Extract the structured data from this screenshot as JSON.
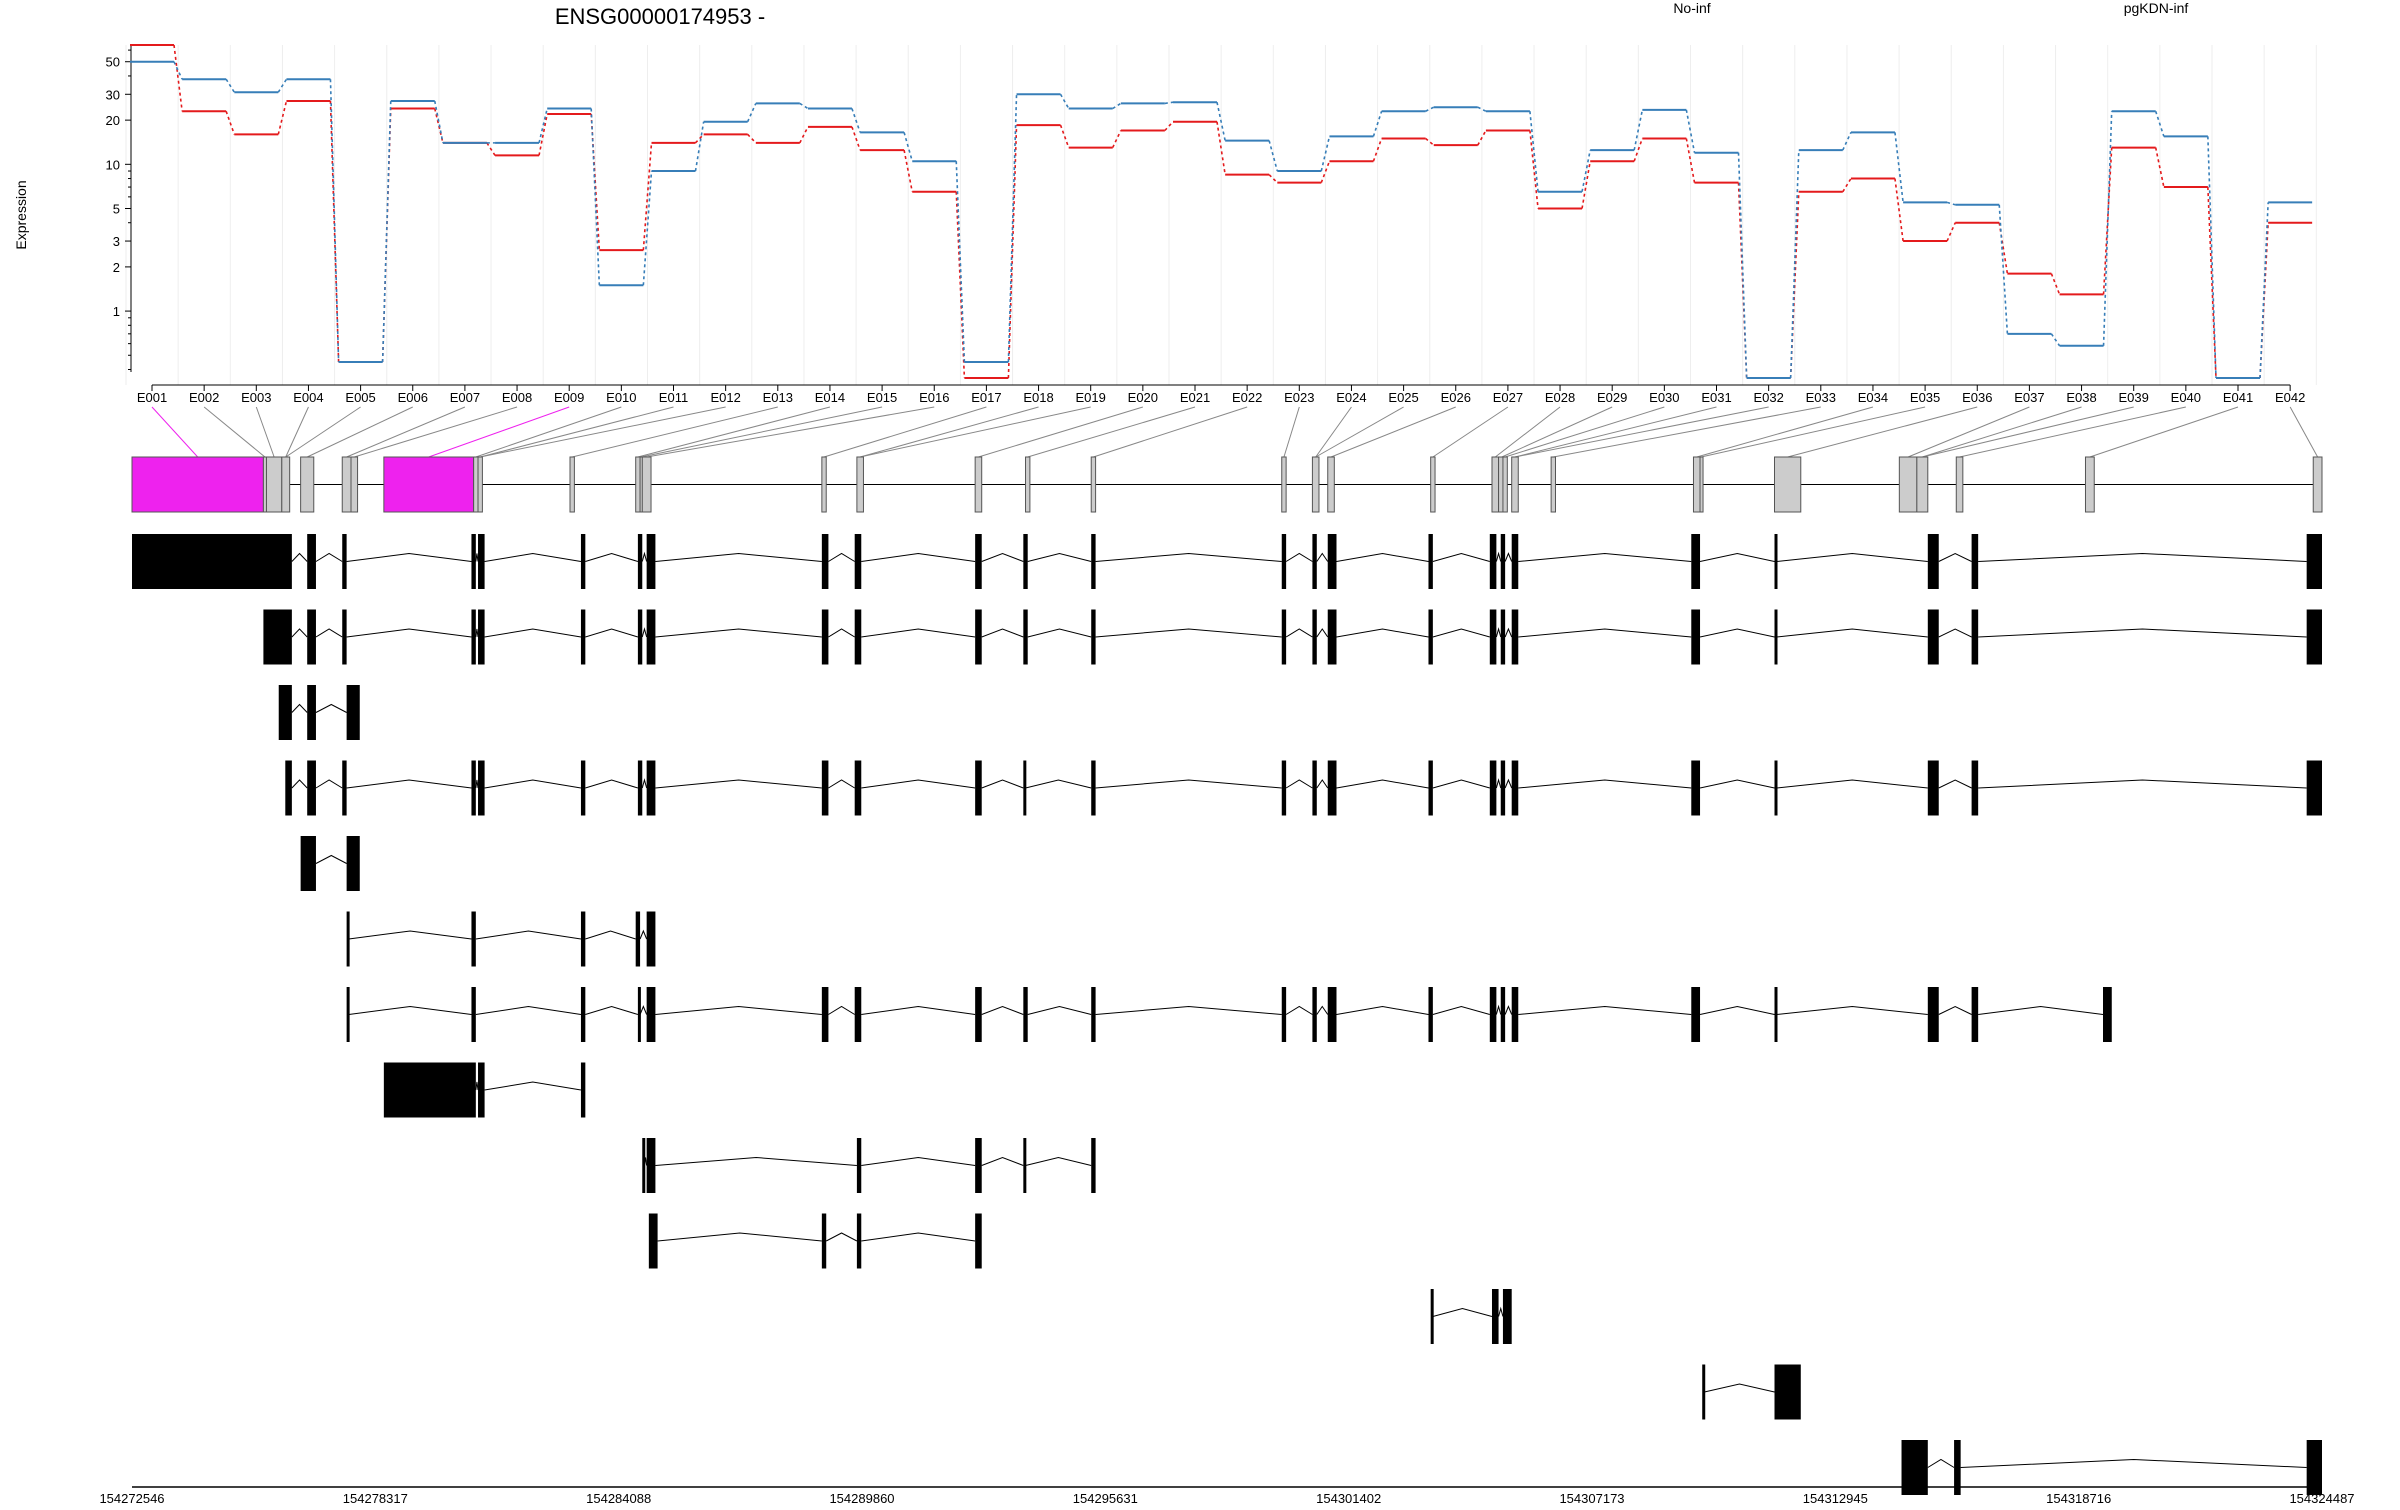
{
  "title": "ENSG00000174953 -",
  "ylabel": "Expression",
  "colors": {
    "no_inf": "#e41a1c",
    "pgkdn_inf": "#377eb8",
    "exon_gray": "#cccccc",
    "exon_magenta": "#ee22ee",
    "transcript": "#000000"
  },
  "chart_data": [
    {
      "type": "line",
      "scale": "log",
      "ylabel": "Expression",
      "yticks": [
        1,
        2,
        3,
        5,
        10,
        20,
        30,
        50
      ],
      "ylim": [
        0.35,
        65
      ],
      "categories": [
        "E001",
        "E002",
        "E003",
        "E004",
        "E005",
        "E006",
        "E007",
        "E008",
        "E009",
        "E010",
        "E011",
        "E012",
        "E013",
        "E014",
        "E015",
        "E016",
        "E017",
        "E018",
        "E019",
        "E020",
        "E021",
        "E022",
        "E023",
        "E024",
        "E025",
        "E026",
        "E027",
        "E028",
        "E029",
        "E030",
        "E031",
        "E032",
        "E033",
        "E034",
        "E035",
        "E036",
        "E037",
        "E038",
        "E039",
        "E040",
        "E041",
        "E042"
      ],
      "series": [
        {
          "name": "No-inf",
          "color": "#e41a1c",
          "values": [
            65,
            23,
            16,
            27,
            0.45,
            24,
            14,
            11.5,
            22,
            2.6,
            14,
            16,
            14,
            18,
            12.5,
            6.5,
            0.35,
            18.5,
            13,
            17,
            19.5,
            8.5,
            7.5,
            10.5,
            15,
            13.5,
            17,
            5,
            10.5,
            15,
            7.5,
            0.35,
            6.5,
            8,
            3,
            4,
            1.8,
            1.3,
            13,
            7,
            0.35,
            4
          ]
        },
        {
          "name": "pgKDN-inf",
          "color": "#377eb8",
          "values": [
            50,
            38,
            31,
            38,
            0.45,
            27,
            14,
            14,
            24,
            1.5,
            9,
            19.5,
            26,
            24,
            16.5,
            10.5,
            0.45,
            30,
            24,
            26,
            26.5,
            14.5,
            9,
            15.5,
            23,
            24.5,
            23,
            6.5,
            12.5,
            23.5,
            12,
            0.35,
            12.5,
            16.5,
            5.5,
            5.3,
            0.7,
            0.58,
            23,
            15.5,
            0.35,
            5.5
          ]
        }
      ]
    },
    {
      "type": "table",
      "genomic_ticks": [
        "154272546",
        "154278317",
        "154284088",
        "154289860",
        "154295631",
        "154301402",
        "154307173",
        "154312945",
        "154318716",
        "154324487"
      ],
      "genomic_range": [
        154272546,
        154324487
      ],
      "exon_bins": [
        [
          0,
          0.06
        ],
        [
          0.06,
          0.0614
        ],
        [
          0.0614,
          0.0684
        ],
        [
          0.0684,
          0.072
        ],
        [
          0.077,
          0.083
        ],
        [
          0.096,
          0.1
        ],
        [
          0.1,
          0.103
        ],
        [
          0.115,
          0.156
        ],
        [
          0.156,
          0.158
        ],
        [
          0.158,
          0.16
        ],
        [
          0.2,
          0.202
        ],
        [
          0.23,
          0.232
        ],
        [
          0.232,
          0.233
        ],
        [
          0.233,
          0.237
        ],
        [
          0.315,
          0.317
        ],
        [
          0.331,
          0.334
        ],
        [
          0.385,
          0.388
        ],
        [
          0.408,
          0.41
        ],
        [
          0.438,
          0.44
        ],
        [
          0.525,
          0.527
        ],
        [
          0.539,
          0.542
        ],
        [
          0.546,
          0.549
        ],
        [
          0.593,
          0.595
        ],
        [
          0.621,
          0.624
        ],
        [
          0.624,
          0.627
        ],
        [
          0.626,
          0.628
        ],
        [
          0.63,
          0.633
        ],
        [
          0.648,
          0.65
        ],
        [
          0.713,
          0.716
        ],
        [
          0.716,
          0.717
        ],
        [
          0.75,
          0.762
        ],
        [
          0.807,
          0.815
        ],
        [
          0.815,
          0.82
        ],
        [
          0.833,
          0.836
        ],
        [
          0.892,
          0.896
        ],
        [
          0.996,
          1.0
        ]
      ],
      "highlight_bins": [
        0,
        7
      ],
      "transcripts": [
        [
          [
            0,
            0.073
          ],
          [
            0.08,
            0.084
          ],
          [
            0.096,
            0.098
          ],
          [
            0.155,
            0.157
          ],
          [
            0.158,
            0.161
          ],
          [
            0.205,
            0.207
          ],
          [
            0.231,
            0.233
          ],
          [
            0.235,
            0.239
          ],
          [
            0.315,
            0.318
          ],
          [
            0.33,
            0.333
          ],
          [
            0.385,
            0.388
          ],
          [
            0.407,
            0.409
          ],
          [
            0.438,
            0.44
          ],
          [
            0.525,
            0.527
          ],
          [
            0.539,
            0.541
          ],
          [
            0.546,
            0.55
          ],
          [
            0.592,
            0.594
          ],
          [
            0.62,
            0.623
          ],
          [
            0.625,
            0.627
          ],
          [
            0.63,
            0.633
          ],
          [
            0.712,
            0.716
          ],
          [
            0.75,
            0.751
          ],
          [
            0.82,
            0.825
          ],
          [
            0.84,
            0.843
          ],
          [
            0.993,
            1.0
          ]
        ],
        [
          [
            0.06,
            0.073
          ],
          [
            0.08,
            0.084
          ],
          [
            0.096,
            0.098
          ],
          [
            0.155,
            0.157
          ],
          [
            0.158,
            0.161
          ],
          [
            0.205,
            0.207
          ],
          [
            0.231,
            0.233
          ],
          [
            0.235,
            0.239
          ],
          [
            0.315,
            0.318
          ],
          [
            0.33,
            0.333
          ],
          [
            0.385,
            0.388
          ],
          [
            0.407,
            0.409
          ],
          [
            0.438,
            0.44
          ],
          [
            0.525,
            0.527
          ],
          [
            0.539,
            0.541
          ],
          [
            0.546,
            0.55
          ],
          [
            0.592,
            0.594
          ],
          [
            0.62,
            0.623
          ],
          [
            0.625,
            0.627
          ],
          [
            0.63,
            0.633
          ],
          [
            0.712,
            0.716
          ],
          [
            0.75,
            0.751
          ],
          [
            0.82,
            0.825
          ],
          [
            0.84,
            0.843
          ],
          [
            0.993,
            1.0
          ]
        ],
        [
          [
            0.067,
            0.073
          ],
          [
            0.08,
            0.084
          ],
          [
            0.098,
            0.104
          ]
        ],
        [
          [
            0.07,
            0.073
          ],
          [
            0.08,
            0.084
          ],
          [
            0.096,
            0.098
          ],
          [
            0.155,
            0.157
          ],
          [
            0.158,
            0.161
          ],
          [
            0.205,
            0.207
          ],
          [
            0.231,
            0.233
          ],
          [
            0.235,
            0.239
          ],
          [
            0.315,
            0.318
          ],
          [
            0.33,
            0.333
          ],
          [
            0.385,
            0.388
          ],
          [
            0.407,
            0.408
          ],
          [
            0.438,
            0.44
          ],
          [
            0.525,
            0.527
          ],
          [
            0.539,
            0.541
          ],
          [
            0.546,
            0.55
          ],
          [
            0.592,
            0.594
          ],
          [
            0.62,
            0.623
          ],
          [
            0.625,
            0.627
          ],
          [
            0.63,
            0.633
          ],
          [
            0.712,
            0.716
          ],
          [
            0.75,
            0.751
          ],
          [
            0.82,
            0.825
          ],
          [
            0.84,
            0.843
          ],
          [
            0.993,
            1.0
          ]
        ],
        [
          [
            0.077,
            0.084
          ],
          [
            0.098,
            0.104
          ]
        ],
        [
          [
            0.098,
            0.099
          ],
          [
            0.155,
            0.157
          ],
          [
            0.205,
            0.207
          ],
          [
            0.23,
            0.232
          ],
          [
            0.235,
            0.239
          ]
        ],
        [
          [
            0.098,
            0.099
          ],
          [
            0.155,
            0.157
          ],
          [
            0.205,
            0.207
          ],
          [
            0.231,
            0.232
          ],
          [
            0.235,
            0.239
          ],
          [
            0.315,
            0.318
          ],
          [
            0.33,
            0.333
          ],
          [
            0.385,
            0.388
          ],
          [
            0.407,
            0.409
          ],
          [
            0.438,
            0.44
          ],
          [
            0.525,
            0.527
          ],
          [
            0.539,
            0.541
          ],
          [
            0.546,
            0.55
          ],
          [
            0.592,
            0.594
          ],
          [
            0.62,
            0.623
          ],
          [
            0.625,
            0.627
          ],
          [
            0.63,
            0.633
          ],
          [
            0.712,
            0.716
          ],
          [
            0.75,
            0.751
          ],
          [
            0.82,
            0.825
          ],
          [
            0.84,
            0.843
          ],
          [
            0.9,
            0.904
          ]
        ],
        [
          [
            0.115,
            0.157
          ],
          [
            0.158,
            0.161
          ],
          [
            0.205,
            0.207
          ]
        ],
        [
          [
            0.233,
            0.234
          ],
          [
            0.235,
            0.239
          ],
          [
            0.331,
            0.333
          ],
          [
            0.385,
            0.388
          ],
          [
            0.407,
            0.408
          ],
          [
            0.438,
            0.44
          ]
        ],
        [
          [
            0.236,
            0.24
          ],
          [
            0.315,
            0.317
          ],
          [
            0.331,
            0.333
          ],
          [
            0.385,
            0.388
          ]
        ],
        [
          [
            0.593,
            0.594
          ],
          [
            0.621,
            0.624
          ],
          [
            0.626,
            0.63
          ]
        ],
        [
          [
            0.717,
            0.718
          ],
          [
            0.75,
            0.762
          ]
        ],
        [
          [
            0.808,
            0.82
          ],
          [
            0.832,
            0.835
          ],
          [
            0.993,
            1.0
          ]
        ]
      ]
    }
  ]
}
